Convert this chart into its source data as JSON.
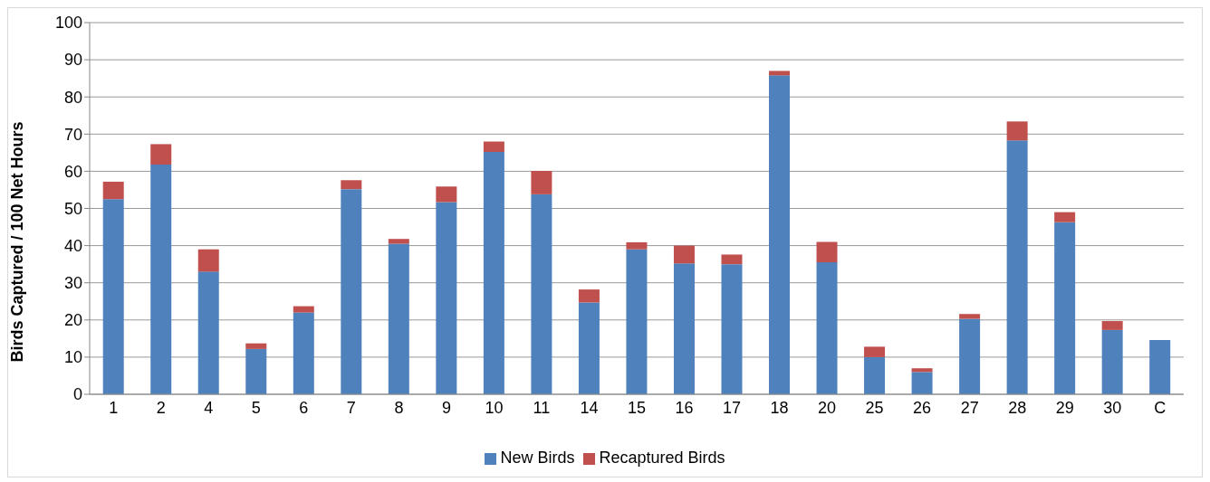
{
  "chart_data": {
    "type": "bar",
    "stacked": true,
    "ylabel": "Birds Captured / 100 Net Hours",
    "categories": [
      "1",
      "2",
      "4",
      "5",
      "6",
      "7",
      "8",
      "9",
      "10",
      "11",
      "14",
      "15",
      "16",
      "17",
      "18",
      "20",
      "25",
      "26",
      "27",
      "28",
      "29",
      "30",
      "C"
    ],
    "series": [
      {
        "name": "New Birds",
        "color": "#4f81bd",
        "values": [
          52.5,
          61.8,
          33,
          12.2,
          22,
          55.2,
          40.5,
          51.7,
          65.2,
          53.8,
          24.7,
          39,
          35.2,
          35,
          85.8,
          35.5,
          10,
          6,
          20.3,
          68.3,
          46.3,
          17.3,
          14.6
        ]
      },
      {
        "name": "Recaptured Birds",
        "color": "#c0504d",
        "values": [
          4.7,
          5.5,
          6,
          1.5,
          1.7,
          2.4,
          1.3,
          4.2,
          2.8,
          6.3,
          3.5,
          1.9,
          4.8,
          2.6,
          1.2,
          5.5,
          2.8,
          1,
          1.3,
          5.1,
          2.7,
          2.4,
          null
        ]
      }
    ],
    "ylim": [
      0,
      100
    ],
    "yticks": [
      0,
      10,
      20,
      30,
      40,
      50,
      60,
      70,
      80,
      90,
      100
    ],
    "grid": "y",
    "legend": "bottom"
  }
}
